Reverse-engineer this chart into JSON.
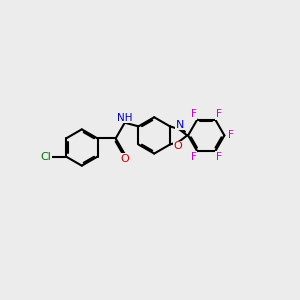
{
  "background_color": "#ececec",
  "bond_color": "#000000",
  "bond_lw": 1.5,
  "dbo": 0.07,
  "atom_colors": {
    "N": "#0000cc",
    "O": "#cc0000",
    "Cl": "#007700",
    "F": "#cc00cc"
  },
  "font_size": 7.5,
  "fig_w": 3.0,
  "fig_h": 3.0,
  "dpi": 100,
  "xlim": [
    -4.0,
    6.5
  ],
  "ylim": [
    -3.0,
    3.0
  ]
}
